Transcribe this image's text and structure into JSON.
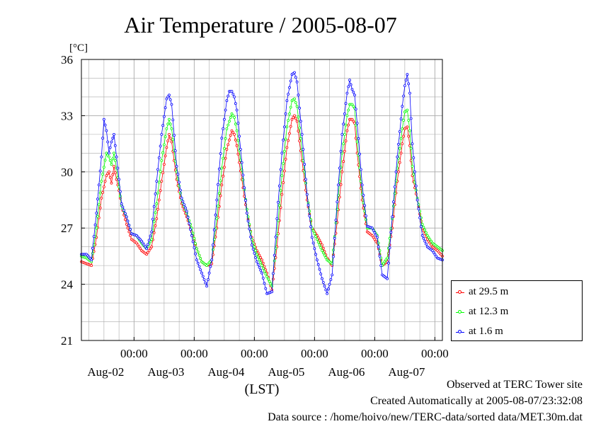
{
  "title": "Air Temperature / 2005-08-07",
  "footer": {
    "line1": "Observed at TERC Tower site",
    "line2": "Created Automatically at 2005-08-07/23:32:08",
    "line3": "Data source : /home/hoivo/new/TERC-data/sorted  data/MET.30m.dat"
  },
  "colors": {
    "s1": "#ff0000",
    "s2": "#00ff00",
    "s3": "#0000ff",
    "grid": "#aaaaaa"
  },
  "chart_data": {
    "type": "line",
    "title": "Air Temperature / 2005-08-07",
    "ylabel": "[°C]",
    "xlabel": "(LST)",
    "ylim": [
      21,
      36
    ],
    "yticks": [
      21,
      24,
      27,
      30,
      33,
      36
    ],
    "xlim": [
      0,
      144
    ],
    "xticks": [
      {
        "x": 21,
        "time": "00:00",
        "date": "Aug-02"
      },
      {
        "x": 45,
        "time": "00:00",
        "date": "Aug-03"
      },
      {
        "x": 69,
        "time": "00:00",
        "date": "Aug-04"
      },
      {
        "x": 93,
        "time": "00:00",
        "date": "Aug-05"
      },
      {
        "x": 117,
        "time": "00:00",
        "date": "Aug-06"
      },
      {
        "x": 141,
        "time": "00:00",
        "date": "Aug-07"
      }
    ],
    "x_unit": "hours",
    "grid": true,
    "legend_position": "bottom-right, outside",
    "series": [
      {
        "name": "at 29.5 m",
        "color": "#ff0000",
        "points": [
          [
            0,
            25.2
          ],
          [
            2,
            25.1
          ],
          [
            4,
            25.0
          ],
          [
            6,
            26.5
          ],
          [
            8,
            28.6
          ],
          [
            10,
            29.8
          ],
          [
            11,
            30.0
          ],
          [
            12,
            29.4
          ],
          [
            13,
            30.3
          ],
          [
            14,
            29.6
          ],
          [
            15,
            29.0
          ],
          [
            16,
            28.2
          ],
          [
            18,
            27.2
          ],
          [
            20,
            26.4
          ],
          [
            22,
            26.2
          ],
          [
            24,
            25.8
          ],
          [
            26,
            25.6
          ],
          [
            28,
            26.0
          ],
          [
            30,
            27.5
          ],
          [
            32,
            29.5
          ],
          [
            34,
            31.3
          ],
          [
            35,
            32.0
          ],
          [
            36,
            31.6
          ],
          [
            38,
            29.6
          ],
          [
            40,
            28.3
          ],
          [
            42,
            27.6
          ],
          [
            44,
            26.8
          ],
          [
            46,
            25.9
          ],
          [
            48,
            25.2
          ],
          [
            50,
            25.0
          ],
          [
            52,
            25.1
          ],
          [
            54,
            27.0
          ],
          [
            56,
            29.3
          ],
          [
            58,
            31.2
          ],
          [
            60,
            32.2
          ],
          [
            61,
            32.0
          ],
          [
            62,
            31.4
          ],
          [
            64,
            29.6
          ],
          [
            66,
            27.8
          ],
          [
            68,
            26.5
          ],
          [
            70,
            25.8
          ],
          [
            72,
            25.3
          ],
          [
            74,
            24.6
          ],
          [
            76,
            23.7
          ],
          [
            78,
            26.0
          ],
          [
            80,
            28.8
          ],
          [
            82,
            31.3
          ],
          [
            84,
            32.8
          ],
          [
            85,
            33.0
          ],
          [
            86,
            32.7
          ],
          [
            88,
            30.6
          ],
          [
            90,
            28.5
          ],
          [
            92,
            27.0
          ],
          [
            94,
            26.6
          ],
          [
            96,
            26.1
          ],
          [
            98,
            25.4
          ],
          [
            100,
            25.0
          ],
          [
            102,
            27.3
          ],
          [
            104,
            30.0
          ],
          [
            106,
            32.2
          ],
          [
            107,
            32.8
          ],
          [
            108,
            32.8
          ],
          [
            109,
            32.6
          ],
          [
            110,
            31.0
          ],
          [
            112,
            28.5
          ],
          [
            114,
            26.8
          ],
          [
            116,
            26.6
          ],
          [
            118,
            26.2
          ],
          [
            120,
            25.0
          ],
          [
            122,
            25.2
          ],
          [
            124,
            27.0
          ],
          [
            126,
            29.5
          ],
          [
            128,
            31.5
          ],
          [
            129,
            32.3
          ],
          [
            130,
            32.4
          ],
          [
            131,
            31.4
          ],
          [
            132,
            29.8
          ],
          [
            134,
            28.5
          ],
          [
            136,
            27.0
          ],
          [
            138,
            26.4
          ],
          [
            140,
            26.0
          ],
          [
            142,
            25.8
          ],
          [
            144,
            25.5
          ]
        ]
      },
      {
        "name": "at 12.3 m",
        "color": "#00ff00",
        "points": [
          [
            0,
            25.5
          ],
          [
            2,
            25.4
          ],
          [
            4,
            25.2
          ],
          [
            6,
            27.0
          ],
          [
            8,
            29.5
          ],
          [
            10,
            31.0
          ],
          [
            11,
            30.8
          ],
          [
            12,
            30.4
          ],
          [
            13,
            31.0
          ],
          [
            14,
            30.2
          ],
          [
            15,
            29.2
          ],
          [
            16,
            28.2
          ],
          [
            18,
            27.6
          ],
          [
            20,
            26.7
          ],
          [
            22,
            26.6
          ],
          [
            24,
            26.2
          ],
          [
            26,
            25.9
          ],
          [
            28,
            26.4
          ],
          [
            30,
            28.3
          ],
          [
            32,
            30.6
          ],
          [
            34,
            32.3
          ],
          [
            35,
            32.8
          ],
          [
            36,
            32.3
          ],
          [
            38,
            30.0
          ],
          [
            40,
            28.5
          ],
          [
            42,
            27.8
          ],
          [
            44,
            27.0
          ],
          [
            46,
            25.9
          ],
          [
            48,
            25.2
          ],
          [
            50,
            25.0
          ],
          [
            52,
            25.3
          ],
          [
            54,
            27.5
          ],
          [
            56,
            30.2
          ],
          [
            58,
            32.3
          ],
          [
            60,
            33.1
          ],
          [
            61,
            32.9
          ],
          [
            62,
            32.2
          ],
          [
            64,
            30.1
          ],
          [
            66,
            28.0
          ],
          [
            68,
            26.4
          ],
          [
            70,
            25.6
          ],
          [
            72,
            25.0
          ],
          [
            74,
            24.4
          ],
          [
            76,
            23.9
          ],
          [
            78,
            26.6
          ],
          [
            80,
            29.8
          ],
          [
            82,
            32.4
          ],
          [
            84,
            33.8
          ],
          [
            85,
            33.9
          ],
          [
            86,
            33.5
          ],
          [
            88,
            31.2
          ],
          [
            90,
            28.8
          ],
          [
            92,
            27.0
          ],
          [
            94,
            26.4
          ],
          [
            96,
            25.8
          ],
          [
            98,
            25.3
          ],
          [
            100,
            25.1
          ],
          [
            102,
            28.0
          ],
          [
            104,
            31.0
          ],
          [
            106,
            33.0
          ],
          [
            107,
            33.6
          ],
          [
            108,
            33.6
          ],
          [
            109,
            33.4
          ],
          [
            110,
            31.6
          ],
          [
            112,
            28.8
          ],
          [
            114,
            27.0
          ],
          [
            116,
            27.0
          ],
          [
            118,
            26.6
          ],
          [
            120,
            25.0
          ],
          [
            122,
            25.4
          ],
          [
            124,
            27.5
          ],
          [
            126,
            30.2
          ],
          [
            128,
            32.3
          ],
          [
            129,
            33.2
          ],
          [
            130,
            33.3
          ],
          [
            131,
            32.2
          ],
          [
            132,
            30.3
          ],
          [
            134,
            28.6
          ],
          [
            136,
            27.2
          ],
          [
            138,
            26.6
          ],
          [
            140,
            26.2
          ],
          [
            142,
            26.0
          ],
          [
            144,
            25.8
          ]
        ]
      },
      {
        "name": "at 1.6 m",
        "color": "#0000ff",
        "points": [
          [
            0,
            25.6
          ],
          [
            2,
            25.6
          ],
          [
            4,
            25.3
          ],
          [
            6,
            27.8
          ],
          [
            8,
            30.8
          ],
          [
            9,
            32.8
          ],
          [
            10,
            32.2
          ],
          [
            11,
            31.0
          ],
          [
            12,
            31.6
          ],
          [
            13,
            32.0
          ],
          [
            14,
            30.8
          ],
          [
            15,
            29.6
          ],
          [
            16,
            28.3
          ],
          [
            18,
            27.6
          ],
          [
            20,
            26.7
          ],
          [
            22,
            26.6
          ],
          [
            24,
            26.3
          ],
          [
            26,
            25.9
          ],
          [
            28,
            26.8
          ],
          [
            30,
            29.5
          ],
          [
            32,
            32.0
          ],
          [
            34,
            33.9
          ],
          [
            35,
            34.1
          ],
          [
            36,
            33.6
          ],
          [
            38,
            30.3
          ],
          [
            40,
            28.6
          ],
          [
            42,
            27.9
          ],
          [
            44,
            26.6
          ],
          [
            46,
            25.3
          ],
          [
            48,
            24.6
          ],
          [
            50,
            23.9
          ],
          [
            52,
            25.3
          ],
          [
            54,
            28.5
          ],
          [
            56,
            31.8
          ],
          [
            58,
            33.8
          ],
          [
            59,
            34.3
          ],
          [
            60,
            34.3
          ],
          [
            61,
            34.0
          ],
          [
            62,
            33.3
          ],
          [
            64,
            30.5
          ],
          [
            66,
            27.8
          ],
          [
            68,
            26.1
          ],
          [
            70,
            25.2
          ],
          [
            72,
            24.6
          ],
          [
            74,
            23.5
          ],
          [
            76,
            23.6
          ],
          [
            78,
            27.5
          ],
          [
            80,
            31.0
          ],
          [
            82,
            33.8
          ],
          [
            84,
            35.2
          ],
          [
            85,
            35.3
          ],
          [
            86,
            34.8
          ],
          [
            88,
            32.0
          ],
          [
            90,
            28.8
          ],
          [
            92,
            26.5
          ],
          [
            94,
            25.3
          ],
          [
            96,
            24.3
          ],
          [
            98,
            23.5
          ],
          [
            100,
            24.5
          ],
          [
            102,
            28.4
          ],
          [
            104,
            32.0
          ],
          [
            106,
            34.2
          ],
          [
            107,
            34.9
          ],
          [
            108,
            34.4
          ],
          [
            109,
            34.1
          ],
          [
            110,
            32.6
          ],
          [
            112,
            29.3
          ],
          [
            114,
            27.1
          ],
          [
            116,
            27.0
          ],
          [
            118,
            26.5
          ],
          [
            120,
            24.5
          ],
          [
            122,
            24.3
          ],
          [
            124,
            27.6
          ],
          [
            126,
            30.8
          ],
          [
            128,
            33.5
          ],
          [
            129,
            34.6
          ],
          [
            130,
            35.2
          ],
          [
            131,
            34.2
          ],
          [
            132,
            31.5
          ],
          [
            134,
            28.5
          ],
          [
            136,
            26.6
          ],
          [
            138,
            26.0
          ],
          [
            140,
            25.8
          ],
          [
            142,
            25.4
          ],
          [
            144,
            25.3
          ]
        ]
      }
    ]
  }
}
